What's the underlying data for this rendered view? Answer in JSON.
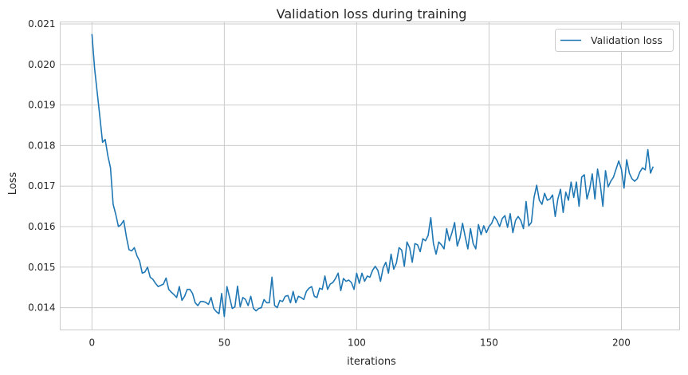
{
  "chart_data": {
    "type": "line",
    "title": "Validation loss during training",
    "xlabel": "iterations",
    "ylabel": "Loss",
    "xlim": [
      -12,
      222
    ],
    "ylim": [
      0.01345,
      0.02105
    ],
    "xticks": [
      0,
      50,
      100,
      150,
      200
    ],
    "xtick_labels": [
      "0",
      "50",
      "100",
      "150",
      "200"
    ],
    "yticks": [
      0.014,
      0.015,
      0.016,
      0.017,
      0.018,
      0.019,
      0.02,
      0.021
    ],
    "ytick_labels": [
      "0.014",
      "0.015",
      "0.016",
      "0.017",
      "0.018",
      "0.019",
      "0.020",
      "0.021"
    ],
    "grid": true,
    "legend_position": "top-right",
    "series": [
      {
        "name": "Validation loss",
        "color": "#1f77b4",
        "x_start": 0,
        "x_step": 1,
        "values": [
          0.02075,
          0.0199,
          0.0193,
          0.0187,
          0.01808,
          0.01815,
          0.01775,
          0.01745,
          0.01655,
          0.0163,
          0.016,
          0.01605,
          0.01615,
          0.01575,
          0.01543,
          0.0154,
          0.01548,
          0.01528,
          0.01515,
          0.01485,
          0.01488,
          0.015,
          0.01475,
          0.0147,
          0.0146,
          0.01452,
          0.01455,
          0.01458,
          0.01473,
          0.01445,
          0.01438,
          0.01432,
          0.01425,
          0.01452,
          0.01418,
          0.01428,
          0.01445,
          0.01445,
          0.01435,
          0.01412,
          0.01405,
          0.01415,
          0.01415,
          0.01413,
          0.01408,
          0.01425,
          0.01398,
          0.0139,
          0.01385,
          0.01435,
          0.01378,
          0.01452,
          0.01425,
          0.01398,
          0.01402,
          0.01453,
          0.01402,
          0.01425,
          0.0142,
          0.01405,
          0.01428,
          0.01398,
          0.01392,
          0.01398,
          0.014,
          0.0142,
          0.01412,
          0.01412,
          0.01475,
          0.01405,
          0.014,
          0.01418,
          0.01415,
          0.01428,
          0.0143,
          0.01412,
          0.0144,
          0.01412,
          0.01428,
          0.01425,
          0.0142,
          0.0144,
          0.01448,
          0.01452,
          0.01428,
          0.01425,
          0.01448,
          0.01445,
          0.01478,
          0.01445,
          0.01458,
          0.01462,
          0.01472,
          0.01485,
          0.01442,
          0.01472,
          0.01465,
          0.01468,
          0.01462,
          0.01445,
          0.01485,
          0.0146,
          0.01485,
          0.01465,
          0.01478,
          0.01475,
          0.01492,
          0.01502,
          0.01492,
          0.01465,
          0.01498,
          0.01512,
          0.01485,
          0.01532,
          0.01495,
          0.0151,
          0.01548,
          0.01542,
          0.01502,
          0.01562,
          0.01548,
          0.01512,
          0.01558,
          0.01555,
          0.01538,
          0.0157,
          0.01565,
          0.01578,
          0.01622,
          0.01558,
          0.01532,
          0.01562,
          0.01555,
          0.01545,
          0.01595,
          0.01565,
          0.01585,
          0.0161,
          0.01552,
          0.01572,
          0.01608,
          0.01575,
          0.01545,
          0.01595,
          0.01558,
          0.01545,
          0.01605,
          0.0158,
          0.01602,
          0.01585,
          0.016,
          0.01608,
          0.01625,
          0.01615,
          0.016,
          0.0162,
          0.01627,
          0.01598,
          0.01632,
          0.01585,
          0.01615,
          0.01625,
          0.01615,
          0.01595,
          0.01662,
          0.01602,
          0.0161,
          0.01672,
          0.01702,
          0.01665,
          0.01655,
          0.01682,
          0.01665,
          0.01668,
          0.01678,
          0.01625,
          0.01668,
          0.01692,
          0.01635,
          0.01685,
          0.01665,
          0.0171,
          0.01672,
          0.0171,
          0.0165,
          0.01722,
          0.01728,
          0.01668,
          0.01692,
          0.0173,
          0.01668,
          0.01742,
          0.01705,
          0.0165,
          0.01738,
          0.01698,
          0.01712,
          0.01722,
          0.01742,
          0.01762,
          0.01742,
          0.01695,
          0.01765,
          0.01732,
          0.01718,
          0.01712,
          0.01718,
          0.01735,
          0.01745,
          0.0174,
          0.0179,
          0.01732,
          0.01748
        ]
      }
    ]
  }
}
